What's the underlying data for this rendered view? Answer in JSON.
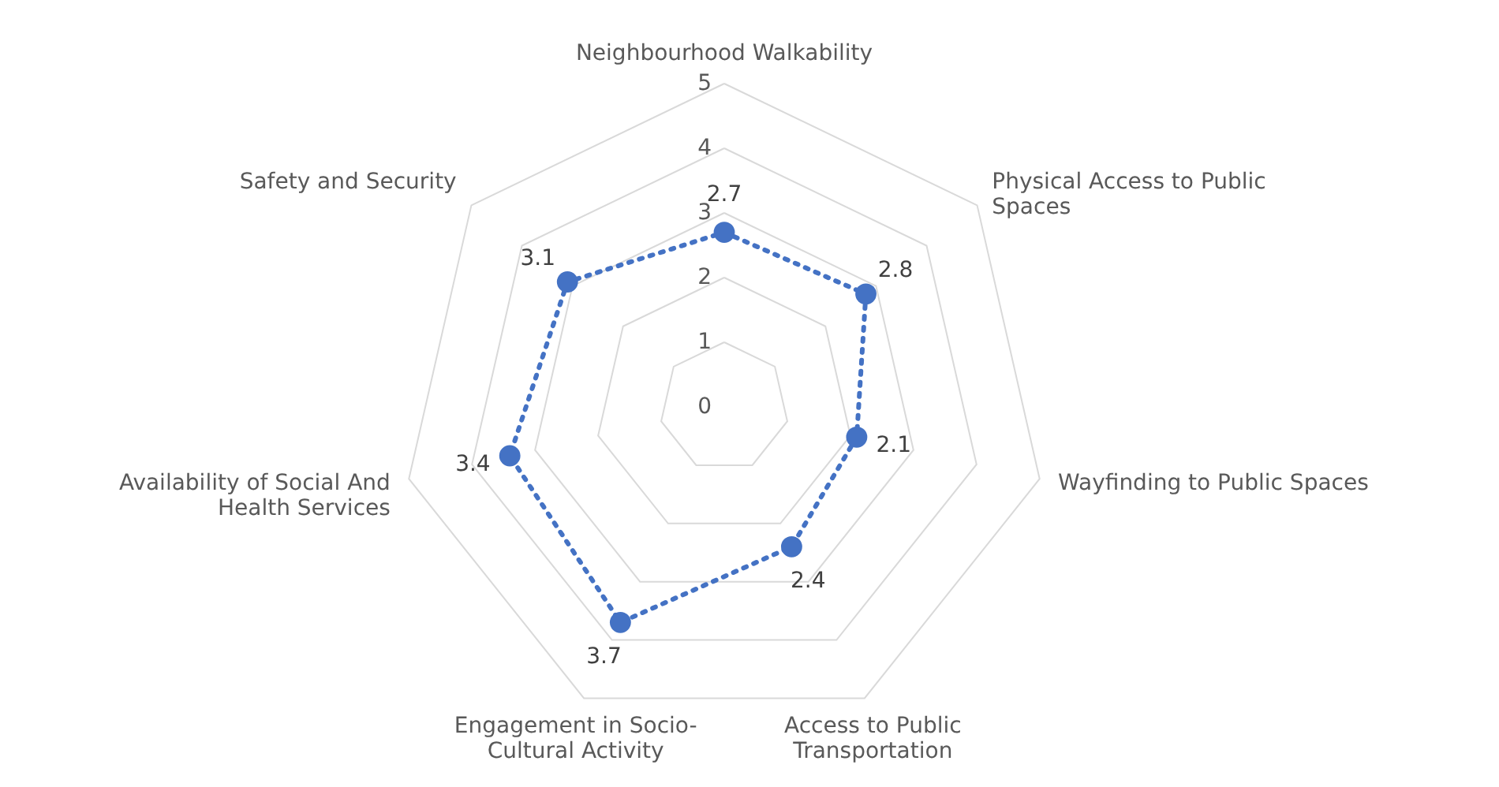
{
  "chart_data": {
    "type": "radar",
    "categories": [
      "Neighbourhood Walkability",
      "Physical Access to Public Spaces",
      "Wayfinding to Public Spaces",
      "Access to Public Transportation",
      "Engagement in Socio-Cultural Activity",
      "Availability of Social And Health Services",
      "Safety and Security"
    ],
    "series": [
      {
        "color": "#4472c4",
        "values": [
          2.7,
          2.8,
          2.1,
          2.4,
          3.7,
          3.4,
          3.1
        ]
      }
    ],
    "ylim": [
      0,
      5
    ],
    "yticks": [
      0,
      1,
      2,
      3,
      4,
      5
    ],
    "grid": true,
    "data_labels": true,
    "marker": "circle",
    "line_style": "dotted"
  }
}
